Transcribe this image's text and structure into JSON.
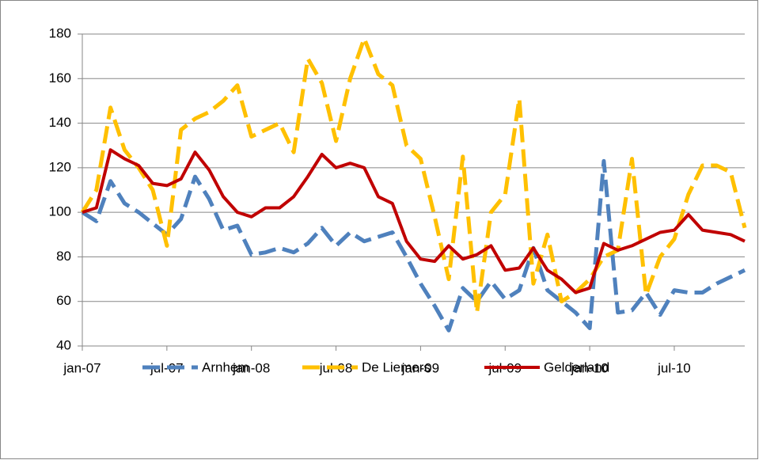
{
  "chart_data": {
    "type": "line",
    "categories": [
      "jan-07",
      null,
      null,
      null,
      null,
      null,
      "jul-07",
      null,
      null,
      null,
      null,
      null,
      "jan-08",
      null,
      null,
      null,
      null,
      null,
      "jul-08",
      null,
      null,
      null,
      null,
      null,
      "jan-09",
      null,
      null,
      null,
      null,
      null,
      "jul-09",
      null,
      null,
      null,
      null,
      null,
      "jan-10",
      null,
      null,
      null,
      null,
      null,
      "jul-10",
      null,
      null,
      null,
      null,
      null
    ],
    "series": [
      {
        "name": "Arnhem",
        "color": "#4f81bd",
        "dash": true,
        "values": [
          100,
          96,
          114,
          104,
          100,
          95,
          90,
          97,
          116,
          106,
          92,
          94,
          81,
          82,
          84,
          82,
          86,
          93,
          85,
          91,
          87,
          89,
          91,
          80,
          68,
          58,
          47,
          66,
          60,
          69,
          61,
          65,
          84,
          65,
          60,
          55,
          48,
          123,
          55,
          56,
          64,
          54,
          65,
          64,
          64,
          68,
          71,
          74
        ]
      },
      {
        "name": "De Liemers",
        "color": "#ffc000",
        "dash": true,
        "values": [
          100,
          110,
          147,
          128,
          120,
          110,
          85,
          137,
          142,
          145,
          150,
          157,
          134,
          137,
          140,
          127,
          169,
          158,
          132,
          160,
          178,
          162,
          157,
          130,
          124,
          98,
          70,
          125,
          55,
          100,
          108,
          151,
          68,
          90,
          60,
          64,
          70,
          80,
          83,
          124,
          63,
          80,
          88,
          108,
          121,
          121,
          118,
          93
        ]
      },
      {
        "name": "Gelderland",
        "color": "#c00000",
        "dash": false,
        "values": [
          100,
          102,
          128,
          124,
          121,
          113,
          112,
          115,
          127,
          119,
          107,
          100,
          98,
          102,
          102,
          107,
          116,
          126,
          120,
          122,
          120,
          107,
          104,
          87,
          79,
          78,
          85,
          79,
          81,
          85,
          74,
          75,
          84,
          74,
          70,
          64,
          66,
          86,
          83,
          85,
          88,
          91,
          92,
          99,
          92,
          91,
          90,
          87
        ]
      }
    ],
    "ylim": [
      40,
      180
    ],
    "yticks": [
      40,
      60,
      80,
      100,
      120,
      140,
      160,
      180
    ],
    "grid": true,
    "legend": "bottom"
  }
}
